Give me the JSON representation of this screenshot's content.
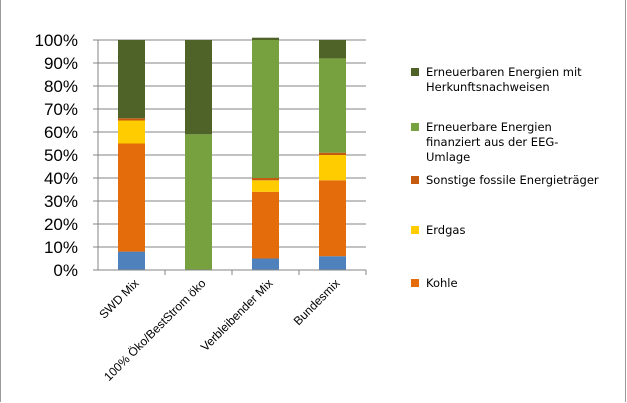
{
  "chart_data": {
    "type": "stacked-bar-100",
    "categories": [
      "SWD Mix",
      "100% Öko/BestStrom öko",
      "Verbleibender Mix",
      "Bundesmix"
    ],
    "series": [
      {
        "name": "Kohle",
        "values": [
          47,
          0,
          29,
          33
        ],
        "color": "#E46C0A"
      },
      {
        "name": "Erdgas",
        "values": [
          10,
          0,
          5,
          11
        ],
        "color": "#FFCC00"
      },
      {
        "name": "Sonstige fossile Energieträger",
        "values": [
          1,
          0,
          1,
          1
        ],
        "color": "#C55A11"
      },
      {
        "name": "Erneuerbare Energien finanziert aus der EEG-Umlage",
        "values": [
          0,
          59,
          60,
          41
        ],
        "color": "#77A03E"
      },
      {
        "name": "Erneuerbaren Energien mit Herkunftsnachweisen",
        "values": [
          34,
          41,
          1,
          8
        ],
        "color": "#4F6228"
      }
    ],
    "unlabeled_bottom_segment": {
      "values": [
        8,
        0,
        5,
        6
      ],
      "color": "#4F81BD"
    },
    "y_ticks": [
      "0%",
      "10%",
      "20%",
      "30%",
      "40%",
      "50%",
      "60%",
      "70%",
      "80%",
      "90%",
      "100%"
    ],
    "ylim": [
      0,
      100
    ],
    "grid": true,
    "legend_position": "right",
    "legend": [
      {
        "lines": [
          "Erneuerbaren Energien mit",
          "Herkunftsnachweisen"
        ],
        "color": "#4F6228"
      },
      {
        "lines": [
          "Erneuerbare Energien",
          "finanziert aus der EEG-",
          "Umlage"
        ],
        "color": "#77A03E"
      },
      {
        "lines": [
          "Sonstige fossile Energieträger"
        ],
        "color": "#C55A11"
      },
      {
        "lines": [
          "Erdgas"
        ],
        "color": "#FFCC00"
      },
      {
        "lines": [
          "Kohle"
        ],
        "color": "#E46C0A"
      }
    ]
  }
}
